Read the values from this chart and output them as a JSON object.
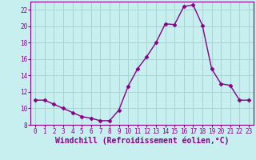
{
  "x": [
    0,
    1,
    2,
    3,
    4,
    5,
    6,
    7,
    8,
    9,
    10,
    11,
    12,
    13,
    14,
    15,
    16,
    17,
    18,
    19,
    20,
    21,
    22,
    23
  ],
  "y": [
    11,
    11,
    10.5,
    10,
    9.5,
    9,
    8.8,
    8.5,
    8.5,
    9.8,
    12.7,
    14.8,
    16.3,
    18,
    20.3,
    20.2,
    22.4,
    22.6,
    20.1,
    14.8,
    13,
    12.8,
    11,
    11
  ],
  "line_color": "#880088",
  "marker": "D",
  "marker_size": 2.5,
  "line_width": 1.0,
  "background_color": "#c8efef",
  "grid_color": "#a8d4d4",
  "xlabel": "Windchill (Refroidissement éolien,°C)",
  "xlabel_fontsize": 7,
  "ylim": [
    8,
    23
  ],
  "xlim": [
    -0.5,
    23.5
  ],
  "yticks": [
    8,
    10,
    12,
    14,
    16,
    18,
    20,
    22
  ],
  "xticks": [
    0,
    1,
    2,
    3,
    4,
    5,
    6,
    7,
    8,
    9,
    10,
    11,
    12,
    13,
    14,
    15,
    16,
    17,
    18,
    19,
    20,
    21,
    22,
    23
  ],
  "tick_fontsize": 5.5,
  "spine_color": "#880088"
}
